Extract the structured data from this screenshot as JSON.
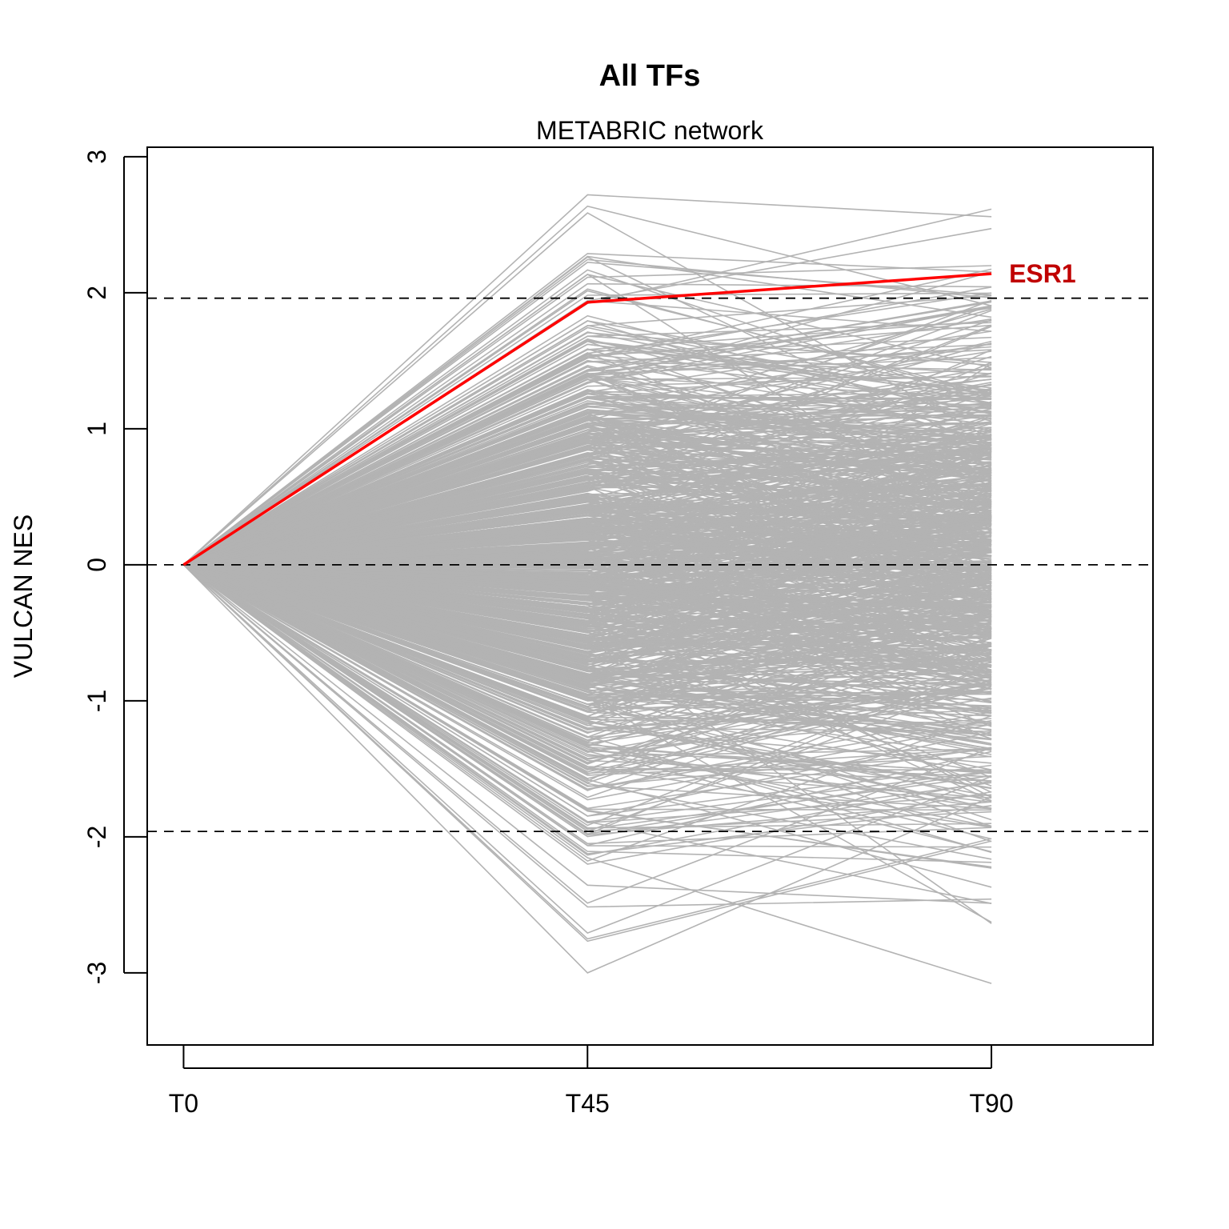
{
  "chart_data": {
    "type": "line",
    "title": "All TFs",
    "subtitle": "METABRIC network",
    "xlabel": "",
    "ylabel": "VULCAN NES",
    "categories": [
      "T0",
      "T45",
      "T90"
    ],
    "ylim": [
      -3.5,
      3
    ],
    "yticks": [
      -3,
      -2,
      -1,
      0,
      1,
      2,
      3
    ],
    "xlim": [
      -0.09,
      2.4
    ],
    "reference_lines": [
      -1.96,
      0,
      1.96
    ],
    "background_series_color": "#b3b3b3",
    "background_series_count": 900,
    "background_series_t45_range": [
      -3.0,
      2.72
    ],
    "background_series_t90_range": [
      -3.3,
      2.83
    ],
    "highlight": {
      "name": "ESR1",
      "color": "#ff0000",
      "label_color": "#c00000",
      "values": [
        0,
        1.93,
        2.14
      ]
    }
  }
}
